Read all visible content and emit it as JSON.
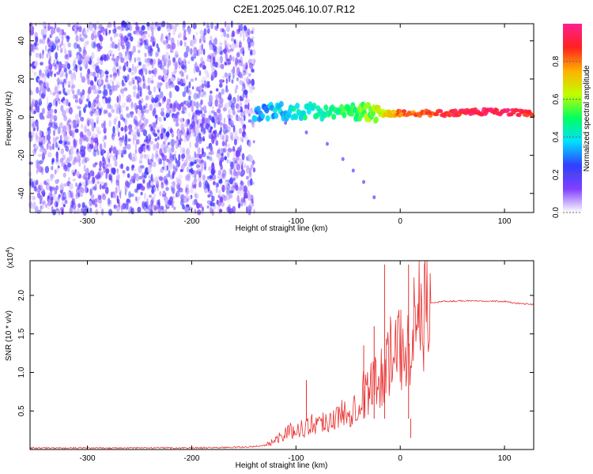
{
  "title": "C2E1.2025.046.10.07.R12",
  "colors": {
    "spectrogram_noise": "#6a1fd8",
    "snr_line": "#e83030",
    "axis": "#000000"
  },
  "chart_data": [
    {
      "type": "heatmap",
      "title": "C2E1.2025.046.10.07.R12",
      "xlabel": "Height of straight line (km)",
      "ylabel": "Frequency (Hz)",
      "xlim": [
        -355,
        128
      ],
      "ylim": [
        -50,
        49
      ],
      "xticks": [
        -300,
        -200,
        -100,
        0,
        100
      ],
      "yticks": [
        -40,
        -20,
        0,
        20,
        40
      ],
      "grid": false,
      "colorbar": {
        "label": "Normalized spectral amplitude",
        "range": [
          0,
          1
        ],
        "ticks": [
          "0.0",
          "0.2",
          "0.4",
          "0.6",
          "0.8"
        ],
        "colormap": [
          "#ffffff",
          "#8040ff",
          "#3040ff",
          "#00e0ff",
          "#00ff60",
          "#c0ff00",
          "#ffb000",
          "#ff2020",
          "#ff2090"
        ]
      },
      "features": {
        "noise_region_x": [
          -355,
          -140
        ],
        "main_tone": [
          {
            "x": -140,
            "y": 3,
            "level": 0.3
          },
          {
            "x": -100,
            "y": 3,
            "level": 0.4
          },
          {
            "x": -50,
            "y": 3,
            "level": 0.5
          },
          {
            "x": -20,
            "y": 2,
            "level": 0.6
          },
          {
            "x": 0,
            "y": 2,
            "level": 0.8
          },
          {
            "x": 50,
            "y": 2,
            "level": 0.9
          },
          {
            "x": 85,
            "y": 3,
            "level": 0.95
          },
          {
            "x": 128,
            "y": 2,
            "level": 0.9
          }
        ],
        "faint_branch": [
          {
            "x": -110,
            "y": -3
          },
          {
            "x": -90,
            "y": -8
          },
          {
            "x": -70,
            "y": -14
          },
          {
            "x": -55,
            "y": -22
          },
          {
            "x": -45,
            "y": -28
          },
          {
            "x": -35,
            "y": -34
          },
          {
            "x": -25,
            "y": -42
          }
        ]
      }
    },
    {
      "type": "line",
      "xlabel": "Height of straight line (km)",
      "ylabel": "SNR (10 * v/v)",
      "y_multiplier": "(x10",
      "y_multiplier_exp": "4",
      "y_multiplier_close": ")",
      "xlim": [
        -355,
        128
      ],
      "ylim": [
        0,
        2.45
      ],
      "xticks": [
        -300,
        -200,
        -100,
        0,
        100
      ],
      "yticks": [
        0.5,
        1.0,
        1.5,
        2.0
      ],
      "ytick_labels": [
        "0.5",
        "1.0",
        "1.5",
        "2.0"
      ],
      "grid": false,
      "series": [
        {
          "x": [
            -355,
            -300,
            -250,
            -200,
            -150,
            -130,
            -120,
            -110,
            -100,
            -90,
            -80,
            -70,
            -60,
            -50,
            -40,
            -30,
            -20,
            -15,
            -10,
            -5,
            0,
            5,
            8,
            10,
            12,
            15,
            20,
            25,
            30,
            40,
            60,
            80,
            100,
            110,
            128
          ],
          "y": [
            0.02,
            0.02,
            0.02,
            0.02,
            0.03,
            0.05,
            0.12,
            0.22,
            0.25,
            0.3,
            0.35,
            0.38,
            0.42,
            0.5,
            0.65,
            0.8,
            0.9,
            1.1,
            1.2,
            1.2,
            1.3,
            1.45,
            1.3,
            1.5,
            1.6,
            1.7,
            1.78,
            1.85,
            1.9,
            1.92,
            1.93,
            1.93,
            1.92,
            1.9,
            1.88
          ]
        }
      ],
      "spikes": [
        {
          "x": -90,
          "y": 0.9
        },
        {
          "x": -35,
          "y": 1.35
        },
        {
          "x": -25,
          "y": 1.6
        },
        {
          "x": -15,
          "y": 2.4
        },
        {
          "x": 8,
          "y": 2.4
        },
        {
          "x": 10,
          "y": 0.15
        }
      ]
    }
  ]
}
